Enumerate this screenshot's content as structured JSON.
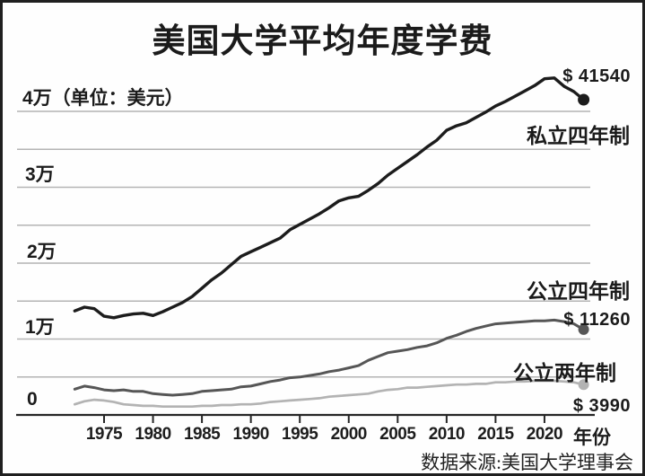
{
  "chart_data": {
    "type": "line",
    "title": "美国大学平均年度学费",
    "unit_label": "4万（单位：美元）",
    "y_tick_labels": [
      "3万",
      "2万",
      "1万",
      "0"
    ],
    "ylim": [
      0,
      45000
    ],
    "grid_step": 5000,
    "x_ticks": [
      1975,
      1980,
      1985,
      1990,
      1995,
      2000,
      2005,
      2010,
      2015,
      2020
    ],
    "xlabel": "年份",
    "years": [
      1972,
      1973,
      1974,
      1975,
      1976,
      1977,
      1978,
      1979,
      1980,
      1981,
      1982,
      1983,
      1984,
      1985,
      1986,
      1987,
      1988,
      1989,
      1990,
      1991,
      1992,
      1993,
      1994,
      1995,
      1996,
      1997,
      1998,
      1999,
      2000,
      2001,
      2002,
      2003,
      2004,
      2005,
      2006,
      2007,
      2008,
      2009,
      2010,
      2011,
      2012,
      2013,
      2014,
      2015,
      2016,
      2017,
      2018,
      2019,
      2020,
      2021,
      2022,
      2023,
      2024
    ],
    "series": [
      {
        "name": "私立四年制",
        "end_label": "$ 41540",
        "end_value": 41540,
        "color": "#1c1c1c",
        "values": [
          13700,
          14200,
          14000,
          13000,
          12800,
          13100,
          13300,
          13400,
          13100,
          13600,
          14200,
          14800,
          15600,
          16700,
          17800,
          18700,
          19800,
          20900,
          21500,
          22100,
          22700,
          23300,
          24400,
          25100,
          25800,
          26500,
          27300,
          28200,
          28600,
          28800,
          29600,
          30500,
          31600,
          32500,
          33400,
          34300,
          35300,
          36200,
          37500,
          38100,
          38500,
          39200,
          39900,
          40700,
          41300,
          42000,
          42700,
          43400,
          44300,
          44400,
          43300,
          42600,
          41540
        ]
      },
      {
        "name": "公立四年制",
        "end_label": "$ 11260",
        "end_value": 11260,
        "color": "#565656",
        "values": [
          3400,
          3800,
          3600,
          3300,
          3200,
          3300,
          3100,
          3100,
          2800,
          2700,
          2600,
          2700,
          2800,
          3100,
          3200,
          3300,
          3400,
          3700,
          3800,
          4100,
          4400,
          4600,
          4900,
          5000,
          5200,
          5400,
          5700,
          5900,
          6200,
          6500,
          7200,
          7700,
          8200,
          8400,
          8600,
          8900,
          9100,
          9500,
          10100,
          10500,
          11000,
          11400,
          11700,
          12000,
          12100,
          12200,
          12300,
          12400,
          12400,
          12500,
          12300,
          12000,
          11260
        ]
      },
      {
        "name": "公立两年制",
        "end_label": "$ 3990",
        "end_value": 3990,
        "color": "#b3b3b3",
        "values": [
          1400,
          1800,
          2000,
          1900,
          1700,
          1400,
          1300,
          1200,
          1200,
          1100,
          1100,
          1100,
          1100,
          1200,
          1200,
          1300,
          1300,
          1400,
          1400,
          1500,
          1700,
          1800,
          1900,
          2000,
          2100,
          2200,
          2400,
          2500,
          2600,
          2700,
          2800,
          3100,
          3300,
          3400,
          3600,
          3600,
          3700,
          3800,
          3900,
          4000,
          4000,
          4100,
          4100,
          4300,
          4300,
          4400,
          4400,
          4500,
          4500,
          4500,
          4400,
          4300,
          3990
        ]
      }
    ],
    "source": "数据来源:美国大学理事会",
    "grid_color": "#b4b4b4",
    "axis_color": "#262626"
  }
}
